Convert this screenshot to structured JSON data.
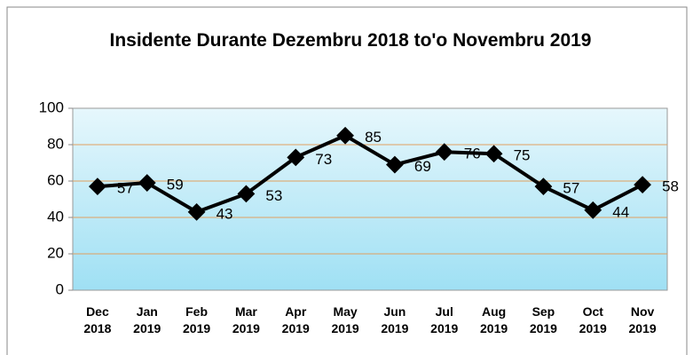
{
  "chart_data": {
    "type": "line",
    "title": "Insidente Durante Dezembru 2018 to'o Novembru 2019",
    "categories": [
      "Dec 2018",
      "Jan 2019",
      "Feb 2019",
      "Mar 2019",
      "Apr 2019",
      "May 2019",
      "Jun 2019",
      "Jul 2019",
      "Aug 2019",
      "Sep 2019",
      "Oct 2019",
      "Nov 2019"
    ],
    "series": [
      {
        "name": "Insidente",
        "color": "#000000",
        "values": [
          57,
          59,
          43,
          53,
          73,
          85,
          69,
          76,
          75,
          57,
          44,
          58
        ]
      }
    ],
    "ylim": [
      0,
      100
    ],
    "yticks": [
      0,
      20,
      40,
      60,
      80,
      100
    ],
    "grid": true,
    "grid_color": "#e0a060",
    "data_labels": true
  }
}
